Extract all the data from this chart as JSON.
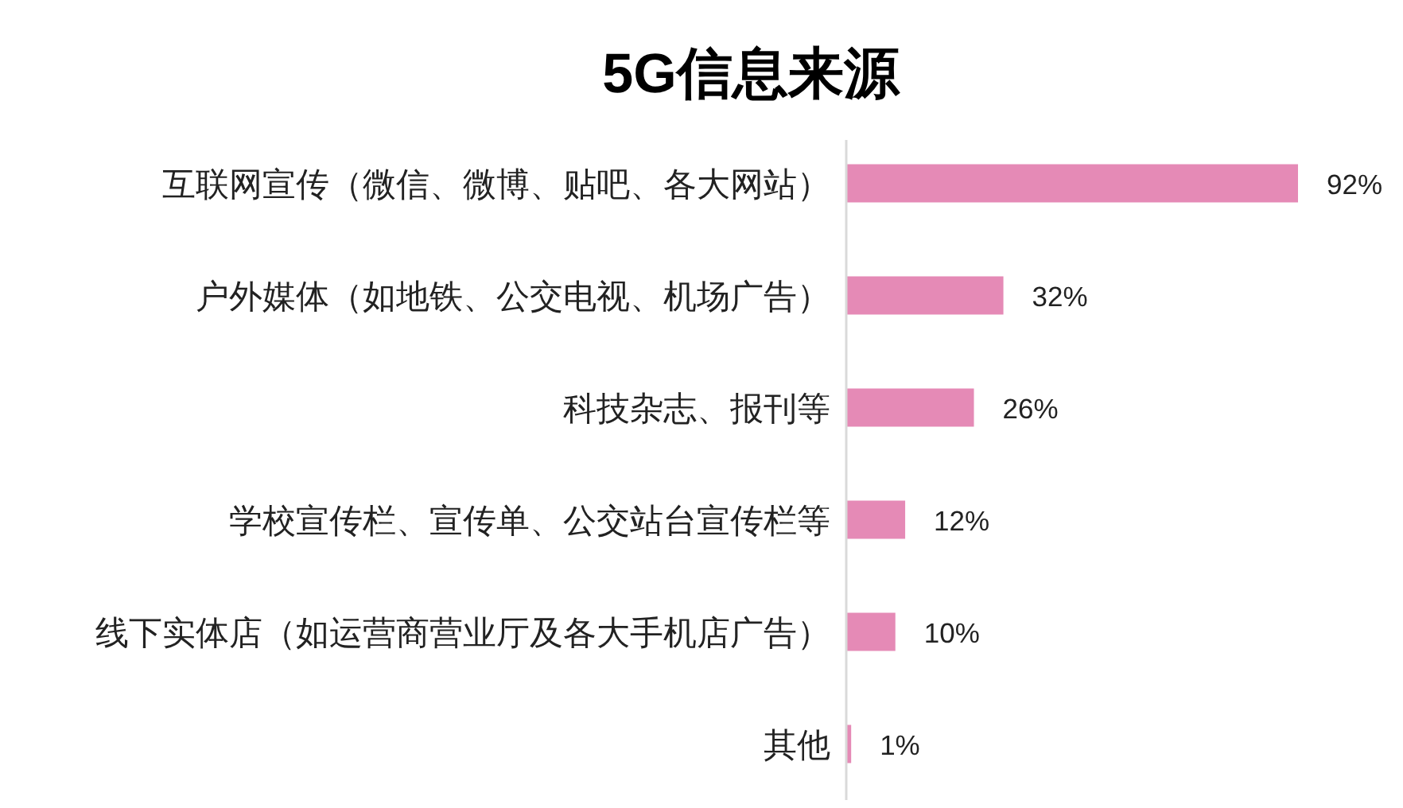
{
  "chart_data": {
    "type": "bar",
    "orientation": "horizontal",
    "title": "5G信息来源",
    "categories": [
      "互联网宣传（微信、微博、贴吧、各大网站）",
      "户外媒体（如地铁、公交电视、机场广告）",
      "科技杂志、报刊等",
      "学校宣传栏、宣传单、公交站台宣传栏等",
      "线下实体店（如运营商营业厅及各大手机店广告）",
      "其他"
    ],
    "values": [
      92,
      32,
      26,
      12,
      10,
      1
    ],
    "color": "#e58ab6",
    "value_labels": [
      "92%",
      "32%",
      "26%",
      "12%",
      "10%",
      "1%"
    ]
  }
}
